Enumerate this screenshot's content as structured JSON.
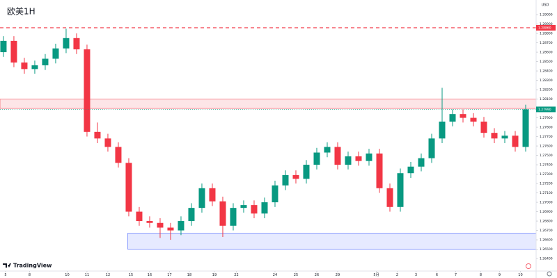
{
  "chart_data": {
    "type": "candlestick",
    "title": "欧美1H",
    "currency": "USD",
    "brand": "TradingView",
    "up_color": "#089981",
    "down_color": "#f23645",
    "x": [
      0,
      1,
      2,
      3,
      4,
      5,
      6,
      7,
      8,
      9,
      10,
      11,
      12,
      13,
      14,
      15,
      16,
      17,
      18,
      19,
      20,
      21,
      22,
      23,
      24,
      25,
      26,
      27,
      28,
      29,
      30,
      31,
      32,
      33,
      34,
      35,
      36,
      37,
      38,
      39,
      40,
      41,
      42,
      43,
      44,
      45,
      46,
      47,
      48,
      49,
      50
    ],
    "open": [
      1.286,
      1.2872,
      1.2849,
      1.2842,
      1.2846,
      1.2853,
      1.2864,
      1.2875,
      1.2863,
      1.2775,
      1.2768,
      1.2759,
      1.2742,
      1.269,
      1.268,
      1.2678,
      1.2673,
      1.267,
      1.268,
      1.2694,
      1.2715,
      1.2701,
      1.2675,
      1.2694,
      1.2697,
      1.2688,
      1.27,
      1.2718,
      1.2729,
      1.2725,
      1.274,
      1.2753,
      1.2759,
      1.274,
      1.2749,
      1.2744,
      1.2752,
      1.2715,
      1.2695,
      1.2731,
      1.2738,
      1.2747,
      1.2768,
      1.2786,
      1.2794,
      1.279,
      1.2786,
      1.2774,
      1.2768,
      1.2771,
      1.2759
    ],
    "high": [
      1.2877,
      1.2877,
      1.2854,
      1.2851,
      1.2858,
      1.2869,
      1.2885,
      1.288,
      1.2868,
      1.2785,
      1.2773,
      1.2764,
      1.2747,
      1.2695,
      1.2685,
      1.2683,
      1.2678,
      1.2685,
      1.2699,
      1.272,
      1.272,
      1.2706,
      1.2699,
      1.2702,
      1.2702,
      1.2705,
      1.2723,
      1.2734,
      1.2734,
      1.2745,
      1.2758,
      1.2764,
      1.2764,
      1.2754,
      1.2754,
      1.2757,
      1.2757,
      1.272,
      1.2736,
      1.2743,
      1.2752,
      1.2773,
      1.2822,
      1.2799,
      1.2799,
      1.2795,
      1.2791,
      1.2779,
      1.2776,
      1.2776,
      1.2804
    ],
    "low": [
      1.2855,
      1.2844,
      1.2837,
      1.2837,
      1.2841,
      1.2848,
      1.2859,
      1.2858,
      1.277,
      1.2763,
      1.2754,
      1.2737,
      1.2685,
      1.2675,
      1.2673,
      1.2662,
      1.266,
      1.2665,
      1.2675,
      1.2689,
      1.2696,
      1.2663,
      1.267,
      1.2689,
      1.2683,
      1.2683,
      1.2695,
      1.2713,
      1.272,
      1.272,
      1.2735,
      1.2748,
      1.2735,
      1.2735,
      1.2739,
      1.2739,
      1.271,
      1.269,
      1.269,
      1.2726,
      1.2733,
      1.2742,
      1.2763,
      1.2781,
      1.2785,
      1.2781,
      1.2769,
      1.2763,
      1.2763,
      1.2754,
      1.2754
    ],
    "close": [
      1.2872,
      1.2849,
      1.2842,
      1.2846,
      1.2853,
      1.2864,
      1.2875,
      1.2863,
      1.2775,
      1.2768,
      1.2759,
      1.2742,
      1.269,
      1.268,
      1.2678,
      1.2673,
      1.267,
      1.268,
      1.2694,
      1.2715,
      1.2701,
      1.2675,
      1.2694,
      1.2697,
      1.2688,
      1.27,
      1.2718,
      1.2729,
      1.2725,
      1.274,
      1.2753,
      1.2759,
      1.274,
      1.2749,
      1.2744,
      1.2752,
      1.2715,
      1.2695,
      1.2731,
      1.2738,
      1.2747,
      1.2768,
      1.2786,
      1.2794,
      1.279,
      1.2786,
      1.2774,
      1.2768,
      1.2771,
      1.2759,
      1.2799
    ],
    "xlim": [
      -0.33,
      51
    ],
    "xticks": [
      {
        "value": 0.2,
        "label": "5"
      },
      {
        "value": 2.5,
        "label": "8"
      },
      {
        "value": 6.1,
        "label": "10"
      },
      {
        "value": 8,
        "label": "11"
      },
      {
        "value": 10,
        "label": "12"
      },
      {
        "value": 12.2,
        "label": "15"
      },
      {
        "value": 14,
        "label": "16"
      },
      {
        "value": 15.9,
        "label": "17"
      },
      {
        "value": 17.8,
        "label": "18"
      },
      {
        "value": 20.2,
        "label": "19"
      },
      {
        "value": 22.3,
        "label": "22"
      },
      {
        "value": 26,
        "label": "24"
      },
      {
        "value": 28,
        "label": "25"
      },
      {
        "value": 30,
        "label": "26"
      },
      {
        "value": 32,
        "label": "29"
      },
      {
        "value": 35.7,
        "label": "5月"
      },
      {
        "value": 37.7,
        "label": "2"
      },
      {
        "value": 39.5,
        "label": "3"
      },
      {
        "value": 41.5,
        "label": "6"
      },
      {
        "value": 43.3,
        "label": "7"
      },
      {
        "value": 45.7,
        "label": "8"
      },
      {
        "value": 47.5,
        "label": "9"
      },
      {
        "value": 49.5,
        "label": "10"
      }
    ],
    "ylim": [
      1.26267,
      1.29156
    ],
    "yticks": [
      {
        "value": 1.264,
        "label": "1.26400"
      },
      {
        "value": 1.265,
        "label": "1.26500"
      },
      {
        "value": 1.266,
        "label": "1.26600"
      },
      {
        "value": 1.267,
        "label": "1.26700"
      },
      {
        "value": 1.268,
        "label": "1.26800"
      },
      {
        "value": 1.269,
        "label": "1.26900"
      },
      {
        "value": 1.27,
        "label": "1.27000"
      },
      {
        "value": 1.271,
        "label": "1.27100"
      },
      {
        "value": 1.272,
        "label": "1.27200"
      },
      {
        "value": 1.273,
        "label": "1.27300"
      },
      {
        "value": 1.274,
        "label": "1.27400"
      },
      {
        "value": 1.275,
        "label": "1.27500"
      },
      {
        "value": 1.276,
        "label": "1.27600"
      },
      {
        "value": 1.277,
        "label": "1.27700"
      },
      {
        "value": 1.278,
        "label": "1.27800"
      },
      {
        "value": 1.279,
        "label": "1.27900"
      },
      {
        "value": 1.28,
        "label": "1.28000"
      },
      {
        "value": 1.281,
        "label": "1.28100"
      },
      {
        "value": 1.282,
        "label": "1.28200"
      },
      {
        "value": 1.283,
        "label": "1.28300"
      },
      {
        "value": 1.284,
        "label": "1.28400"
      },
      {
        "value": 1.285,
        "label": "1.28500"
      },
      {
        "value": 1.286,
        "label": "1.28600"
      },
      {
        "value": 1.287,
        "label": "1.28700"
      },
      {
        "value": 1.288,
        "label": "1.28800"
      },
      {
        "value": 1.289,
        "label": "1.28900"
      },
      {
        "value": 1.29,
        "label": "1.29000"
      }
    ],
    "levels": [
      {
        "value": 1.2886,
        "label": "1.28860",
        "color": "#f23645"
      }
    ],
    "zones": [
      {
        "from": 1.28,
        "to": 1.281,
        "color": "#f23645"
      },
      {
        "from": 1.265,
        "to": 1.2667,
        "x_start": 11.9,
        "color": "#3d5afe"
      }
    ],
    "last_price": {
      "value": 1.2799,
      "label": "1.27990"
    }
  }
}
